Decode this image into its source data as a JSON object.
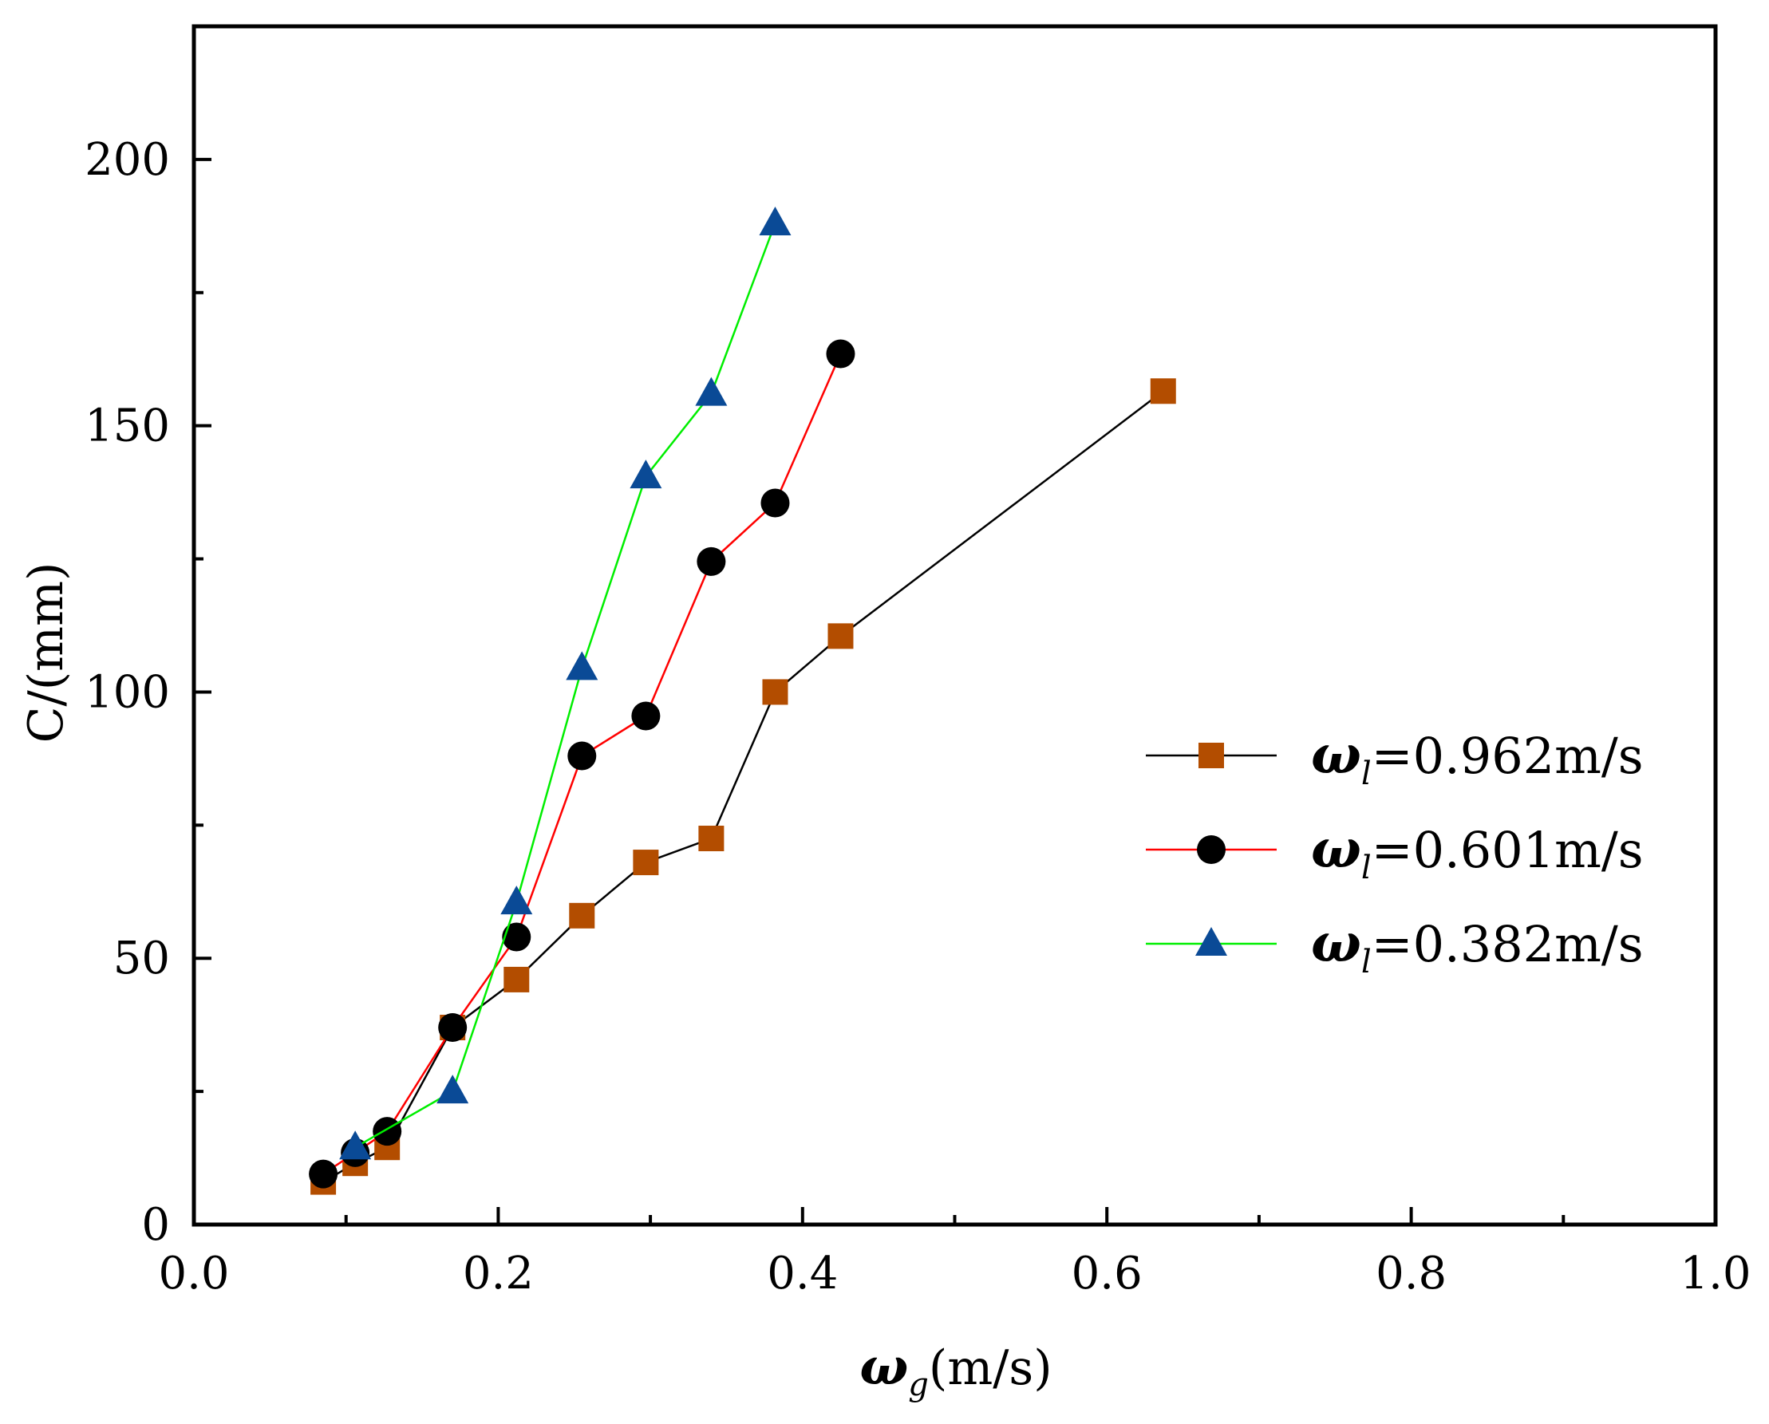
{
  "chart_data": {
    "type": "line",
    "title": "",
    "xlabel": {
      "symbol": "ω",
      "subscript": "g",
      "unit": "(m/s)"
    },
    "ylabel": "C/(mm)",
    "xlim": [
      0.0,
      1.0
    ],
    "ylim": [
      0,
      225
    ],
    "x_ticks": [
      0.0,
      0.2,
      0.4,
      0.6,
      0.8,
      1.0
    ],
    "x_tick_labels": [
      "0.0",
      "0.2",
      "0.4",
      "0.6",
      "0.8",
      "1.0"
    ],
    "x_minor_ticks": [
      0.1,
      0.3,
      0.5,
      0.7,
      0.9
    ],
    "y_ticks": [
      0,
      50,
      100,
      150,
      200
    ],
    "y_tick_labels": [
      "0",
      "50",
      "100",
      "150",
      "200"
    ],
    "y_minor_ticks": [
      25,
      75,
      125,
      175
    ],
    "grid": false,
    "legend_position": "right",
    "series": [
      {
        "name": "ωl=0.962m/s",
        "legend_symbol": "ω",
        "legend_subscript": "l",
        "legend_value": "=0.962m/s",
        "marker": "square",
        "line_color": "#000000",
        "marker_color": "#b34d00",
        "x": [
          0.085,
          0.106,
          0.127,
          0.17,
          0.212,
          0.255,
          0.297,
          0.34,
          0.382,
          0.425,
          0.637
        ],
        "y": [
          8,
          11.5,
          14.5,
          37,
          46,
          58,
          68,
          72.5,
          100,
          110.5,
          156.5
        ]
      },
      {
        "name": "ωl=0.601m/s",
        "legend_symbol": "ω",
        "legend_subscript": "l",
        "legend_value": "=0.601m/s",
        "marker": "circle",
        "line_color": "#ff0000",
        "marker_color": "#000000",
        "x": [
          0.085,
          0.106,
          0.127,
          0.17,
          0.212,
          0.255,
          0.297,
          0.34,
          0.382,
          0.425
        ],
        "y": [
          9.5,
          13.5,
          17.5,
          37,
          54,
          88,
          95.5,
          124.5,
          135.5,
          163.5
        ]
      },
      {
        "name": "ωl=0.382m/s",
        "legend_symbol": "ω",
        "legend_subscript": "l",
        "legend_value": "=0.382m/s",
        "marker": "triangle",
        "line_color": "#00ee00",
        "marker_color": "#0a4a96",
        "x": [
          0.106,
          0.17,
          0.212,
          0.255,
          0.297,
          0.34,
          0.382
        ],
        "y": [
          14.5,
          25,
          60.5,
          104.5,
          140.5,
          156,
          188
        ]
      }
    ]
  }
}
